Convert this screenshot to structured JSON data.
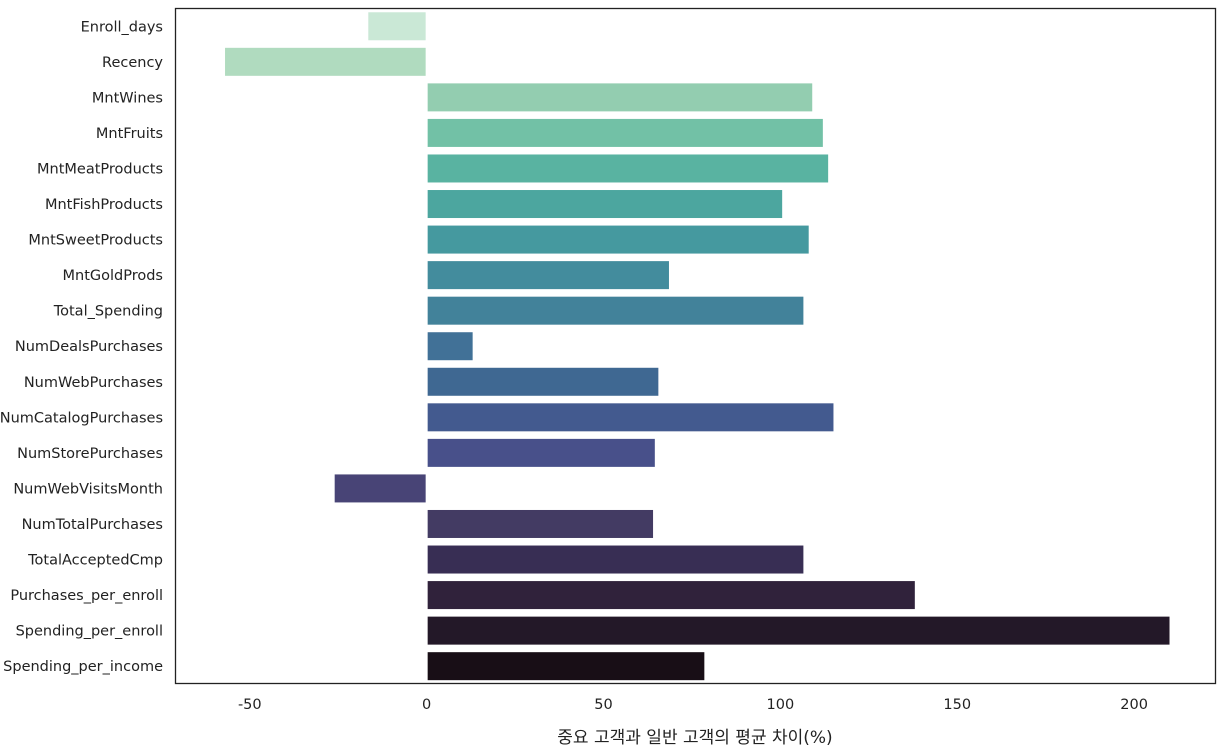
{
  "chart_data": {
    "type": "bar",
    "orientation": "horizontal",
    "title": "",
    "xlabel": "중요 고객과 일반 고객의 평균 차이(%)",
    "ylabel": "",
    "xlim": [
      -71,
      223
    ],
    "xticks": [
      -50,
      0,
      50,
      100,
      150,
      200
    ],
    "xtick_labels": [
      "-50",
      "0",
      "50",
      "100",
      "150",
      "200"
    ],
    "grid": false,
    "legend": "none",
    "categories": [
      "Enroll_days",
      "Recency",
      "MntWines",
      "MntFruits",
      "MntMeatProducts",
      "MntFishProducts",
      "MntSweetProducts",
      "MntGoldProds",
      "Total_Spending",
      "NumDealsPurchases",
      "NumWebPurchases",
      "NumCatalogPurchases",
      "NumStorePurchases",
      "NumWebVisitsMonth",
      "NumTotalPurchases",
      "TotalAcceptedCmp",
      "Purchases_per_enroll",
      "Spending_per_enroll",
      "Spending_per_income"
    ],
    "values": [
      -16.5,
      -57,
      109,
      112,
      113.5,
      100.5,
      108,
      68.5,
      106.5,
      13,
      65.5,
      115,
      64.5,
      -26,
      64,
      106.5,
      138,
      210,
      78.5
    ],
    "colors": [
      "#cae8d6",
      "#b0dbbf",
      "#93cdb0",
      "#72c1a6",
      "#59b3a1",
      "#4ca69f",
      "#45999f",
      "#438c9d",
      "#42829a",
      "#417197",
      "#3f6892",
      "#435a8f",
      "#48508a",
      "#484476",
      "#433b63",
      "#382e54",
      "#30223b",
      "#231828",
      "#180e16"
    ]
  }
}
